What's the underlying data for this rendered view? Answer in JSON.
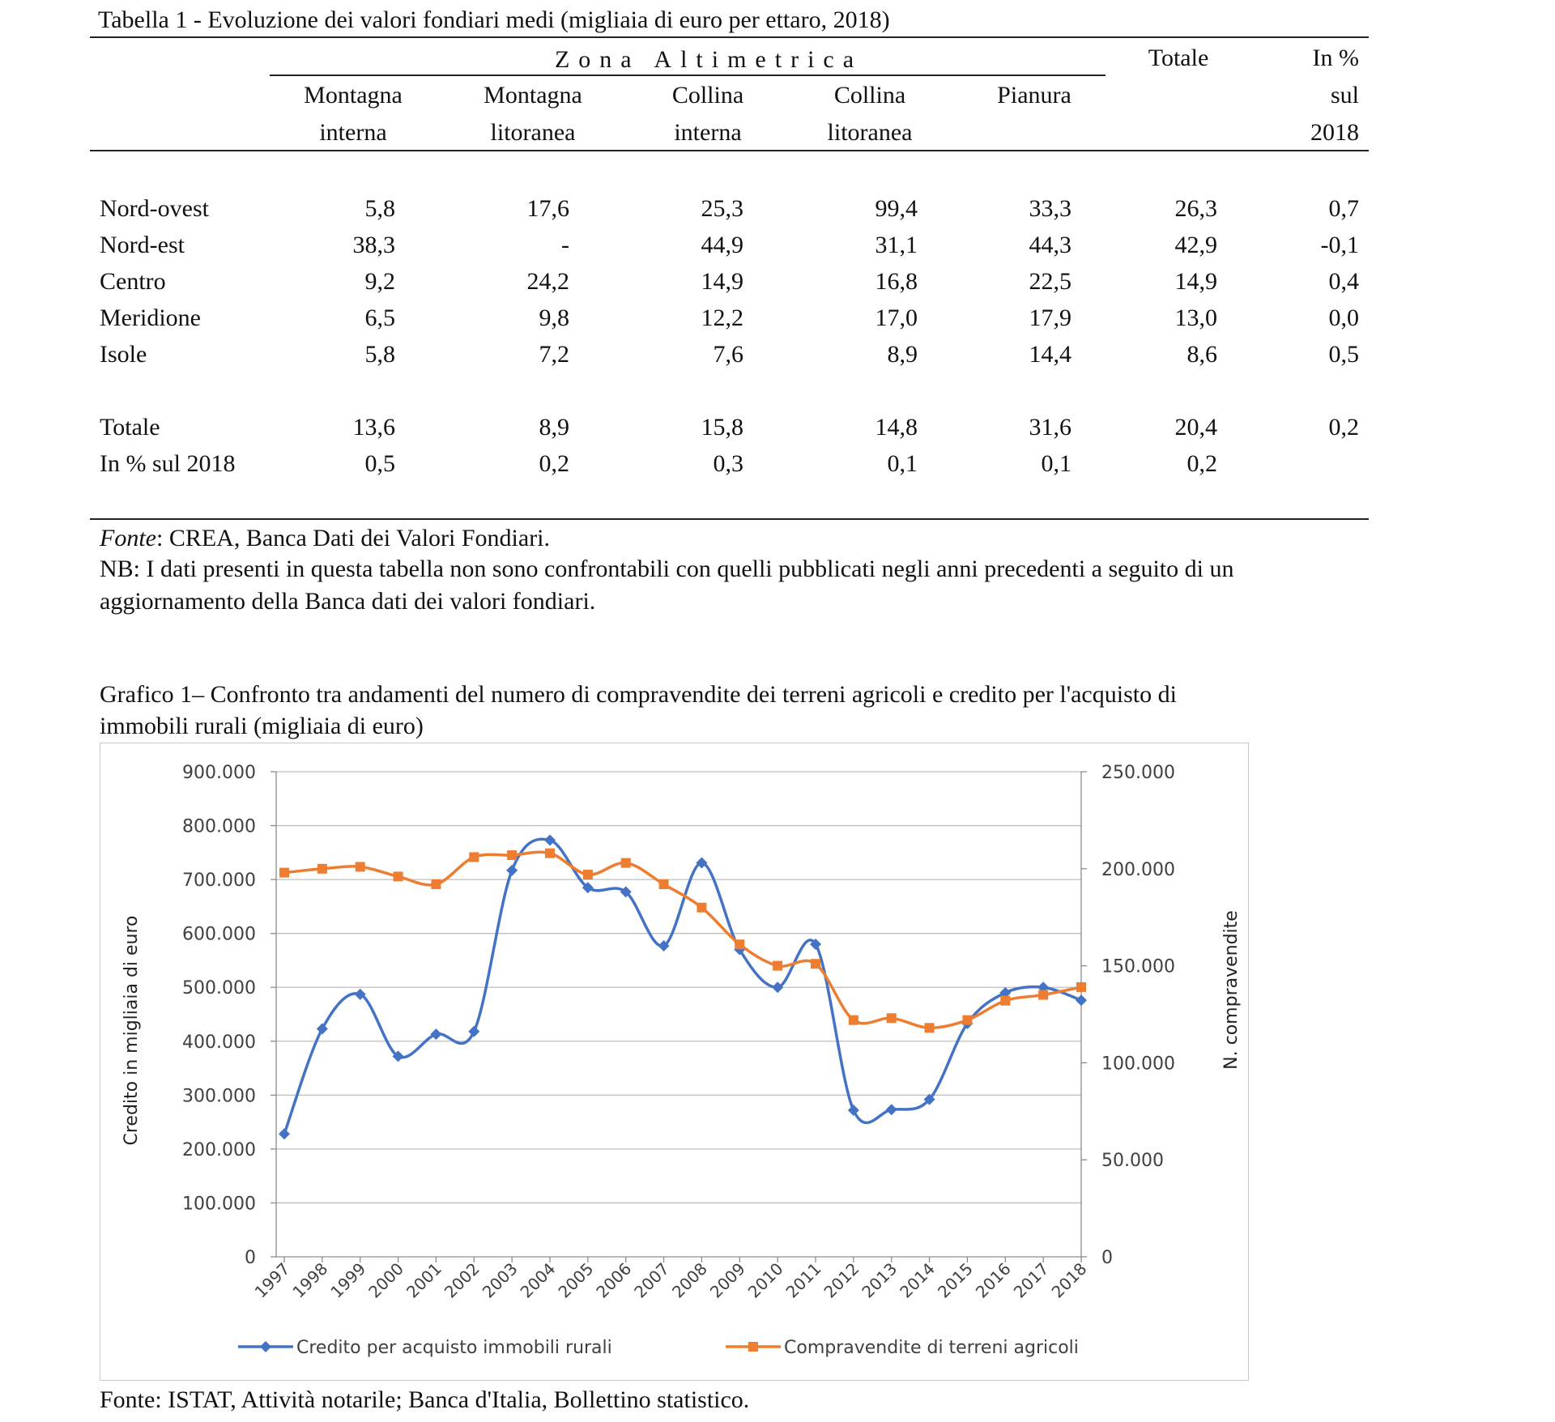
{
  "table": {
    "title": "Tabella 1 - Evoluzione dei valori fondiari medi (migliaia di euro per ettaro, 2018)",
    "zona_header": "Zona Altimetrica",
    "totale_header": "Totale",
    "pct_header": [
      "In %",
      "sul",
      "2018"
    ],
    "columns": [
      [
        "Montagna",
        "interna"
      ],
      [
        "Montagna",
        "litoranea"
      ],
      [
        "Collina",
        "interna"
      ],
      [
        "Collina",
        "litoranea"
      ],
      [
        "Pianura",
        ""
      ]
    ],
    "rows": [
      {
        "label": "Nord-ovest",
        "values": [
          "5,8",
          "17,6",
          "25,3",
          "99,4",
          "33,3",
          "26,3",
          "0,7"
        ]
      },
      {
        "label": "Nord-est",
        "values": [
          "38,3",
          "-",
          "44,9",
          "31,1",
          "44,3",
          "42,9",
          "-0,1"
        ]
      },
      {
        "label": "Centro",
        "values": [
          "9,2",
          "24,2",
          "14,9",
          "16,8",
          "22,5",
          "14,9",
          "0,4"
        ]
      },
      {
        "label": "Meridione",
        "values": [
          "6,5",
          "9,8",
          "12,2",
          "17,0",
          "17,9",
          "13,0",
          "0,0"
        ]
      },
      {
        "label": "Isole",
        "values": [
          "5,8",
          "7,2",
          "7,6",
          "8,9",
          "14,4",
          "8,6",
          "0,5"
        ]
      }
    ],
    "total_rows": [
      {
        "label": "Totale",
        "values": [
          "13,6",
          "8,9",
          "15,8",
          "14,8",
          "31,6",
          "20,4",
          "0,2"
        ]
      },
      {
        "label": "In % sul 2018",
        "values": [
          "0,5",
          "0,2",
          "0,3",
          "0,1",
          "0,1",
          "0,2",
          ""
        ]
      }
    ],
    "source_label": "Fonte",
    "source_text": ": CREA, Banca Dati dei Valori Fondiari.",
    "nb_line1": "NB: I dati presenti in questa tabella non sono confrontabili con quelli pubblicati negli anni precedenti a seguito di un",
    "nb_line2": "aggiornamento della Banca dati dei valori fondiari."
  },
  "chart_title_line1": "Grafico 1– Confronto tra andamenti del numero di compravendite dei terreni agricoli e credito per l'acquisto di",
  "chart_title_line2": "immobili rurali (migliaia di euro)",
  "chart_source": "Fonte: ISTAT, Attività notarile; Banca d'Italia, Bollettino statistico.",
  "chart_data": {
    "type": "line",
    "x": [
      "1997",
      "1998",
      "1999",
      "2000",
      "2001",
      "2002",
      "2003",
      "2004",
      "2005",
      "2006",
      "2007",
      "2008",
      "2009",
      "2010",
      "2011",
      "2012",
      "2013",
      "2014",
      "2015",
      "2016",
      "2017",
      "2018"
    ],
    "ylabel_left": "Credito in migliaia di euro",
    "ylabel_right": "N. compravendite",
    "ylim_left": [
      0,
      900000
    ],
    "ylim_right": [
      0,
      250000
    ],
    "yticks_left": [
      "0",
      "100.000",
      "200.000",
      "300.000",
      "400.000",
      "500.000",
      "600.000",
      "700.000",
      "800.000",
      "900.000"
    ],
    "yticks_right": [
      "0",
      "50.000",
      "100.000",
      "150.000",
      "200.000",
      "250.000"
    ],
    "grid": true,
    "legend_position": "bottom",
    "series": [
      {
        "name": "Credito per acquisto immobili rurali",
        "axis": "left",
        "color": "#4472C4",
        "marker": "diamond",
        "values": [
          228000,
          423000,
          487000,
          372000,
          413000,
          418000,
          717000,
          773000,
          685000,
          677000,
          577000,
          731000,
          570000,
          500000,
          580000,
          272000,
          273000,
          292000,
          433000,
          490000,
          500000,
          476000
        ]
      },
      {
        "name": "Compravendite di terreni agricoli",
        "axis": "right",
        "color": "#ED7D31",
        "marker": "square",
        "values": [
          198000,
          200000,
          201000,
          196000,
          192000,
          206000,
          207000,
          208000,
          197000,
          203000,
          192000,
          180000,
          161000,
          150000,
          151000,
          122000,
          123000,
          118000,
          122000,
          132000,
          135000,
          139000
        ]
      }
    ]
  }
}
